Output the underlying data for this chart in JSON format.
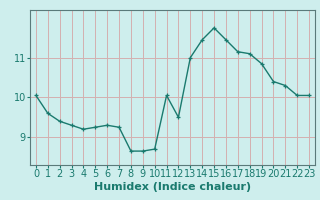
{
  "x": [
    0,
    1,
    2,
    3,
    4,
    5,
    6,
    7,
    8,
    9,
    10,
    11,
    12,
    13,
    14,
    15,
    16,
    17,
    18,
    19,
    20,
    21,
    22,
    23
  ],
  "y": [
    10.05,
    9.6,
    9.4,
    9.3,
    9.2,
    9.25,
    9.3,
    9.25,
    8.65,
    8.65,
    8.7,
    10.05,
    9.5,
    11.0,
    11.45,
    11.75,
    11.45,
    11.15,
    11.1,
    10.85,
    10.4,
    10.3,
    10.05,
    10.05
  ],
  "line_color": "#1a7a6e",
  "marker": "+",
  "marker_size": 3,
  "marker_linewidth": 0.9,
  "bg_color": "#ceeeed",
  "grid_color": "#d4b0b0",
  "xlabel": "Humidex (Indice chaleur)",
  "yticks": [
    9,
    10,
    11
  ],
  "ylim": [
    8.3,
    12.2
  ],
  "xlim": [
    -0.5,
    23.5
  ],
  "xlabel_fontsize": 8,
  "tick_fontsize": 7,
  "linewidth": 1.0
}
